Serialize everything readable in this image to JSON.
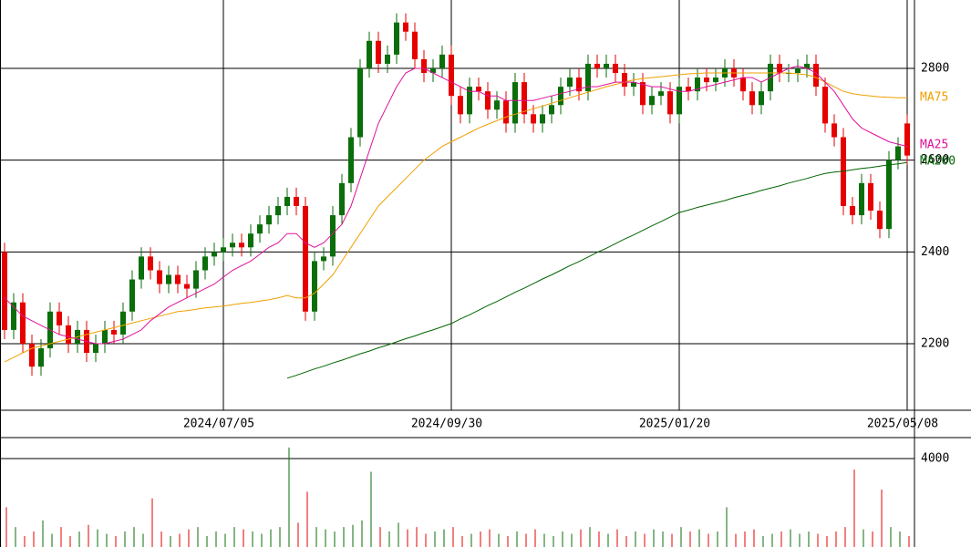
{
  "chart_data": [
    {
      "type": "candlestick",
      "categories": [
        null,
        null,
        null,
        null,
        null,
        null,
        null,
        null,
        null,
        null,
        null,
        null,
        null,
        null,
        null,
        null,
        null,
        null,
        null,
        null,
        null,
        null,
        null,
        null,
        "2024/07/05",
        null,
        null,
        null,
        null,
        null,
        null,
        null,
        null,
        null,
        null,
        null,
        null,
        null,
        null,
        null,
        null,
        null,
        null,
        null,
        null,
        null,
        null,
        null,
        null,
        "2024/09/30",
        null,
        null,
        null,
        null,
        null,
        null,
        null,
        null,
        null,
        null,
        null,
        null,
        null,
        null,
        null,
        null,
        null,
        null,
        null,
        null,
        null,
        null,
        null,
        null,
        "2025/01/20",
        null,
        null,
        null,
        null,
        null,
        null,
        null,
        null,
        null,
        null,
        null,
        null,
        null,
        null,
        null,
        null,
        null,
        null,
        null,
        null,
        null,
        null,
        null,
        null,
        "2025/05/08"
      ],
      "open": [
        2400,
        2230,
        2290,
        2200,
        2150,
        2190,
        2270,
        2240,
        2200,
        2230,
        2180,
        2200,
        2230,
        2220,
        2270,
        2340,
        2390,
        2360,
        2330,
        2350,
        2330,
        2320,
        2360,
        2390,
        2400,
        2410,
        2420,
        2410,
        2440,
        2460,
        2480,
        2500,
        2520,
        2500,
        2270,
        2380,
        2390,
        2480,
        2550,
        2650,
        2800,
        2860,
        2810,
        2830,
        2900,
        2880,
        2820,
        2790,
        2800,
        2830,
        2740,
        2700,
        2760,
        2750,
        2710,
        2730,
        2680,
        2770,
        2700,
        2680,
        2700,
        2720,
        2760,
        2780,
        2750,
        2810,
        2800,
        2810,
        2790,
        2760,
        2770,
        2720,
        2740,
        2750,
        2700,
        2760,
        2750,
        2780,
        2770,
        2780,
        2800,
        2780,
        2750,
        2720,
        2750,
        2810,
        2790,
        2790,
        2800,
        2810,
        2760,
        2680,
        2650,
        2500,
        2480,
        2550,
        2490,
        2450,
        2600,
        2680
      ],
      "high": [
        2420,
        2310,
        2310,
        2220,
        2210,
        2290,
        2290,
        2260,
        2250,
        2250,
        2220,
        2250,
        2250,
        2290,
        2360,
        2410,
        2410,
        2380,
        2370,
        2370,
        2350,
        2380,
        2410,
        2420,
        2430,
        2440,
        2440,
        2460,
        2480,
        2500,
        2520,
        2540,
        2540,
        2520,
        2400,
        2410,
        2500,
        2570,
        2670,
        2820,
        2880,
        2880,
        2850,
        2920,
        2920,
        2900,
        2840,
        2820,
        2850,
        2850,
        2760,
        2780,
        2780,
        2770,
        2750,
        2750,
        2790,
        2790,
        2720,
        2720,
        2740,
        2780,
        2800,
        2800,
        2830,
        2830,
        2830,
        2830,
        2810,
        2790,
        2790,
        2760,
        2770,
        2770,
        2780,
        2780,
        2800,
        2800,
        2800,
        2820,
        2820,
        2800,
        2770,
        2770,
        2830,
        2830,
        2810,
        2820,
        2830,
        2830,
        2780,
        2700,
        2670,
        2520,
        2570,
        2570,
        2510,
        2620,
        2650,
        2700
      ],
      "low": [
        2210,
        2210,
        2180,
        2130,
        2130,
        2170,
        2220,
        2180,
        2180,
        2160,
        2160,
        2180,
        2200,
        2200,
        2250,
        2320,
        2340,
        2310,
        2310,
        2310,
        2300,
        2300,
        2340,
        2370,
        2380,
        2390,
        2390,
        2390,
        2420,
        2440,
        2460,
        2480,
        2480,
        2250,
        2250,
        2360,
        2370,
        2460,
        2530,
        2630,
        2780,
        2790,
        2790,
        2810,
        2860,
        2800,
        2770,
        2770,
        2780,
        2720,
        2680,
        2680,
        2730,
        2690,
        2690,
        2660,
        2660,
        2680,
        2660,
        2660,
        2680,
        2700,
        2740,
        2730,
        2730,
        2780,
        2780,
        2770,
        2740,
        2740,
        2700,
        2700,
        2720,
        2680,
        2680,
        2730,
        2730,
        2750,
        2750,
        2760,
        2760,
        2730,
        2700,
        2700,
        2730,
        2770,
        2770,
        2770,
        2780,
        2740,
        2660,
        2630,
        2480,
        2460,
        2460,
        2470,
        2430,
        2430,
        2580,
        2590
      ],
      "close": [
        2230,
        2290,
        2200,
        2150,
        2190,
        2270,
        2240,
        2200,
        2230,
        2180,
        2200,
        2230,
        2220,
        2270,
        2340,
        2390,
        2360,
        2330,
        2350,
        2330,
        2320,
        2360,
        2390,
        2400,
        2410,
        2420,
        2410,
        2440,
        2460,
        2480,
        2500,
        2520,
        2500,
        2270,
        2380,
        2390,
        2480,
        2550,
        2650,
        2800,
        2860,
        2810,
        2830,
        2900,
        2880,
        2820,
        2790,
        2800,
        2830,
        2740,
        2700,
        2760,
        2750,
        2710,
        2730,
        2680,
        2770,
        2700,
        2680,
        2700,
        2720,
        2760,
        2780,
        2750,
        2810,
        2800,
        2810,
        2790,
        2760,
        2770,
        2720,
        2740,
        2750,
        2700,
        2760,
        2750,
        2780,
        2770,
        2780,
        2800,
        2780,
        2750,
        2720,
        2750,
        2810,
        2790,
        2790,
        2800,
        2810,
        2760,
        2680,
        2650,
        2500,
        2480,
        2550,
        2490,
        2450,
        2600,
        2630,
        2610
      ],
      "up_color": "#0a6e0a",
      "down_color": "#e60000",
      "series": [
        {
          "name": "MA75",
          "color": "#f0a000",
          "values": [
            2160,
            2170,
            2180,
            2190,
            2195,
            2200,
            2205,
            2210,
            2215,
            2220,
            2225,
            2230,
            2235,
            2240,
            2245,
            2250,
            2255,
            2260,
            2265,
            2270,
            2272,
            2275,
            2278,
            2280,
            2282,
            2285,
            2288,
            2290,
            2293,
            2296,
            2300,
            2305,
            2300,
            2300,
            2310,
            2330,
            2350,
            2380,
            2410,
            2440,
            2470,
            2500,
            2520,
            2540,
            2560,
            2580,
            2600,
            2615,
            2630,
            2640,
            2650,
            2660,
            2670,
            2678,
            2686,
            2694,
            2700,
            2706,
            2712,
            2718,
            2724,
            2730,
            2736,
            2742,
            2748,
            2754,
            2760,
            2765,
            2770,
            2775,
            2778,
            2780,
            2782,
            2784,
            2786,
            2788,
            2789,
            2790,
            2790,
            2790,
            2790,
            2790,
            2790,
            2790,
            2790,
            2790,
            2790,
            2788,
            2786,
            2780,
            2770,
            2760,
            2750,
            2745,
            2742,
            2740,
            2738,
            2737,
            2736,
            2736
          ]
        },
        {
          "name": "MA25",
          "color": "#e0109a",
          "values": [
            2300,
            2280,
            2260,
            2250,
            2240,
            2230,
            2220,
            2215,
            2210,
            2205,
            2200,
            2200,
            2205,
            2210,
            2220,
            2230,
            2250,
            2265,
            2280,
            2290,
            2300,
            2310,
            2320,
            2330,
            2345,
            2360,
            2370,
            2380,
            2395,
            2410,
            2420,
            2440,
            2440,
            2420,
            2410,
            2420,
            2440,
            2460,
            2500,
            2560,
            2620,
            2680,
            2720,
            2760,
            2790,
            2800,
            2800,
            2790,
            2780,
            2770,
            2760,
            2750,
            2750,
            2740,
            2740,
            2730,
            2730,
            2730,
            2730,
            2735,
            2740,
            2745,
            2750,
            2755,
            2760,
            2760,
            2765,
            2770,
            2770,
            2770,
            2765,
            2760,
            2760,
            2755,
            2750,
            2750,
            2755,
            2760,
            2765,
            2770,
            2775,
            2780,
            2780,
            2770,
            2780,
            2790,
            2800,
            2805,
            2800,
            2790,
            2770,
            2750,
            2720,
            2690,
            2670,
            2660,
            2650,
            2640,
            2635,
            2630
          ]
        },
        {
          "name": "MA200",
          "color": "#006400",
          "values": [
            null,
            null,
            null,
            null,
            null,
            null,
            null,
            null,
            null,
            null,
            null,
            null,
            null,
            null,
            null,
            null,
            null,
            null,
            null,
            null,
            null,
            null,
            null,
            null,
            null,
            null,
            null,
            null,
            null,
            null,
            null,
            2125,
            2131,
            2138,
            2145,
            2151,
            2158,
            2164,
            2171,
            2178,
            2184,
            2191,
            2197,
            2204,
            2211,
            2217,
            2224,
            2230,
            2237,
            2244,
            2254,
            2263,
            2273,
            2283,
            2292,
            2302,
            2312,
            2321,
            2331,
            2341,
            2350,
            2360,
            2370,
            2379,
            2389,
            2399,
            2408,
            2418,
            2428,
            2437,
            2447,
            2457,
            2466,
            2476,
            2486,
            2491,
            2497,
            2502,
            2507,
            2512,
            2518,
            2523,
            2528,
            2534,
            2539,
            2544,
            2550,
            2555,
            2560,
            2566,
            2571,
            2574,
            2576,
            2579,
            2582,
            2584,
            2587,
            2590,
            2592,
            2595
          ]
        }
      ],
      "ylim": [
        2055,
        2949
      ],
      "yticks": [
        2200,
        2400,
        2600,
        2800
      ],
      "grid": true
    },
    {
      "type": "bar",
      "values": [
        1800,
        900,
        500,
        700,
        1200,
        600,
        900,
        500,
        700,
        1000,
        800,
        600,
        500,
        700,
        900,
        600,
        2200,
        700,
        500,
        600,
        800,
        900,
        500,
        700,
        600,
        900,
        800,
        700,
        600,
        800,
        900,
        4500,
        1100,
        2500,
        900,
        800,
        700,
        900,
        1000,
        1200,
        3400,
        900,
        700,
        1100,
        800,
        900,
        600,
        700,
        800,
        900,
        500,
        600,
        700,
        800,
        600,
        500,
        700,
        600,
        800,
        600,
        500,
        700,
        600,
        800,
        900,
        700,
        600,
        800,
        500,
        700,
        600,
        800,
        700,
        600,
        900,
        700,
        800,
        600,
        700,
        1800,
        600,
        700,
        800,
        500,
        600,
        700,
        800,
        600,
        700,
        600,
        500,
        700,
        900,
        3500,
        800,
        700,
        2600,
        900,
        700,
        500
      ],
      "ylim": [
        0,
        4948
      ],
      "yticks": [
        4000
      ]
    }
  ]
}
